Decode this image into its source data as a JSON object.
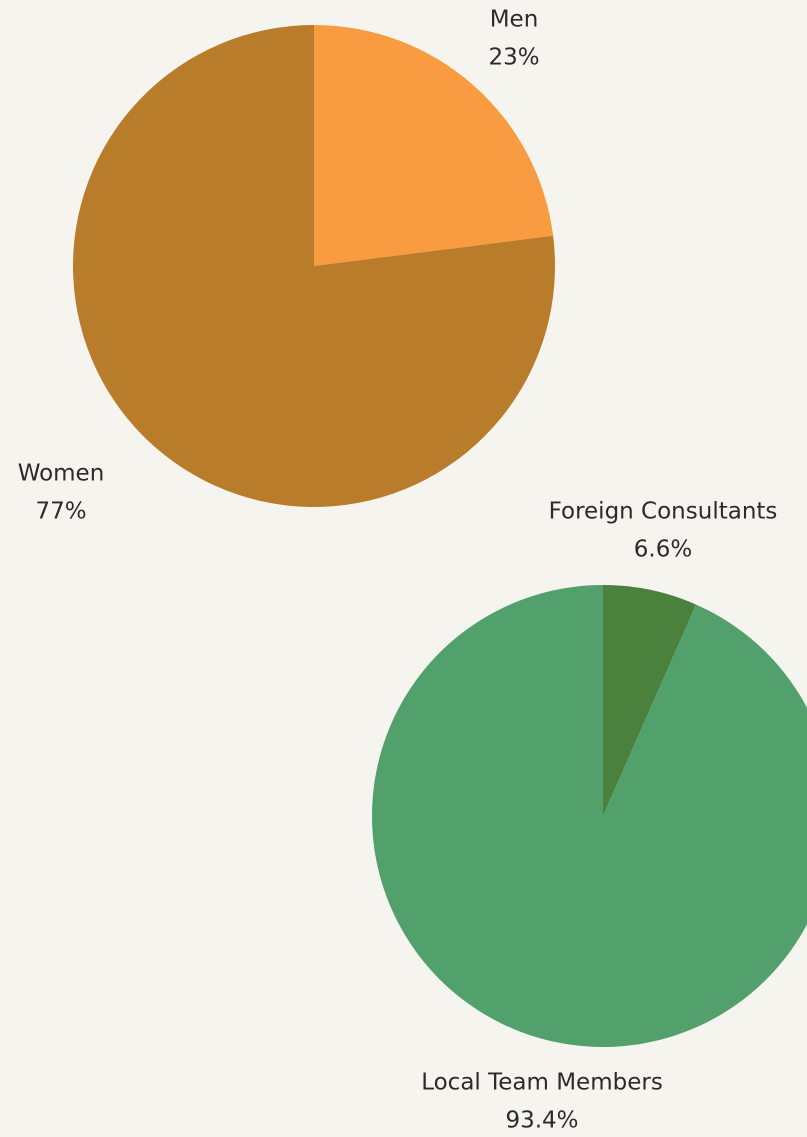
{
  "chart_data": [
    {
      "type": "pie",
      "categories": [
        "Men",
        "Women"
      ],
      "values": [
        23,
        77
      ],
      "value_labels": [
        "23%",
        "77%"
      ],
      "colors": [
        "#f99b40",
        "#b97c2a"
      ]
    },
    {
      "type": "pie",
      "categories": [
        "Foreign Consultants",
        "Local Team Members"
      ],
      "values": [
        6.6,
        93.4
      ],
      "value_labels": [
        "6.6%",
        "93.4%"
      ],
      "colors": [
        "#4a823d",
        "#52a06c"
      ]
    }
  ]
}
